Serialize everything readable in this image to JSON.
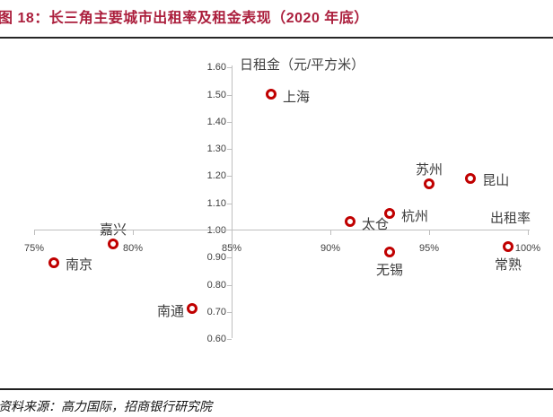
{
  "header": {
    "title": "图 18：长三角主要城市出租率及租金表现（2020 年底）"
  },
  "footer": {
    "source": "资料来源：高力国际，招商银行研究院"
  },
  "colors": {
    "title_red": "#ab1e3c",
    "marker_red": "#c00000",
    "axis_gray": "#bfbfbf",
    "label_gray": "#404040"
  },
  "chart_data": {
    "type": "scatter",
    "title": "",
    "xlabel": "出租率",
    "ylabel": "日租金（元/平方米）",
    "x_axis": {
      "label": "出租率",
      "min": 75,
      "max": 100,
      "cross_at": 85,
      "tick_values": [
        75,
        80,
        85,
        90,
        95,
        100
      ],
      "tick_labels": [
        "75%",
        "80%",
        "85%",
        "90%",
        "95%",
        "100%"
      ]
    },
    "y_axis": {
      "label": "日租金（元/平方米）",
      "min": 0.6,
      "max": 1.6,
      "cross_at": 1.0,
      "tick_values": [
        1.6,
        1.5,
        1.4,
        1.3,
        1.2,
        1.1,
        1.0,
        0.9,
        0.8,
        0.7,
        0.6
      ],
      "tick_labels": [
        "1.60",
        "1.50",
        "1.40",
        "1.30",
        "1.20",
        "1.10",
        "1.00",
        "0.90",
        "0.80",
        "0.70",
        "0.60"
      ]
    },
    "grid": false,
    "legend": false,
    "points": [
      {
        "city": "上海",
        "occupancy_pct": 87.0,
        "rent": 1.5,
        "label_position": "right"
      },
      {
        "city": "苏州",
        "occupancy_pct": 95.0,
        "rent": 1.17,
        "label_position": "above"
      },
      {
        "city": "昆山",
        "occupancy_pct": 97.1,
        "rent": 1.19,
        "label_position": "right"
      },
      {
        "city": "杭州",
        "occupancy_pct": 93.0,
        "rent": 1.06,
        "label_position": "right"
      },
      {
        "city": "太仓",
        "occupancy_pct": 91.0,
        "rent": 1.03,
        "label_position": "right"
      },
      {
        "city": "嘉兴",
        "occupancy_pct": 79.0,
        "rent": 0.95,
        "label_position": "above"
      },
      {
        "city": "南京",
        "occupancy_pct": 76.0,
        "rent": 0.88,
        "label_position": "right"
      },
      {
        "city": "无锡",
        "occupancy_pct": 93.0,
        "rent": 0.92,
        "label_position": "below"
      },
      {
        "city": "常熟",
        "occupancy_pct": 99.0,
        "rent": 0.94,
        "label_position": "below"
      },
      {
        "city": "南通",
        "occupancy_pct": 83.0,
        "rent": 0.71,
        "label_position": "left"
      }
    ]
  }
}
